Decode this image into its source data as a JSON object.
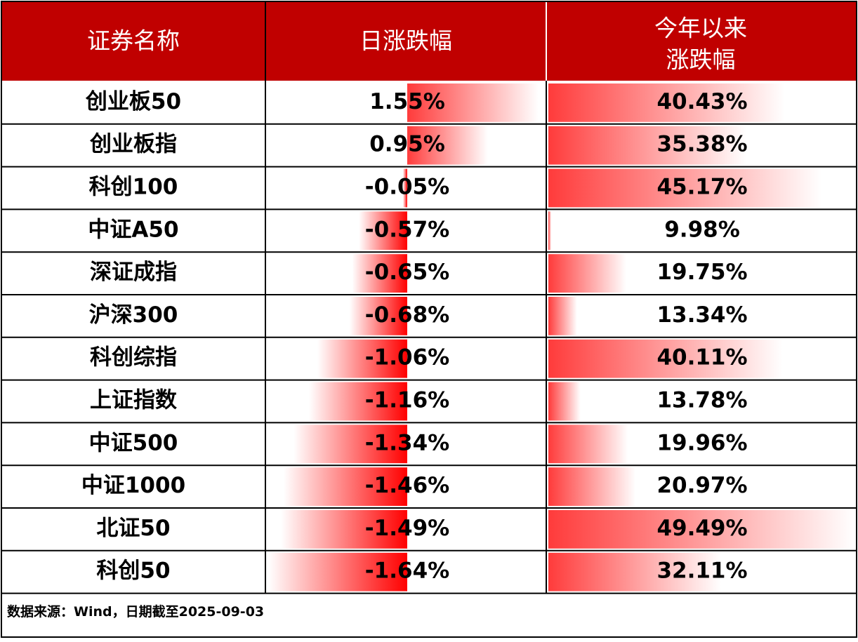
{
  "table": {
    "headers": [
      "证券名称",
      "日涨跌幅",
      [
        "今年以来",
        "涨跌幅"
      ]
    ],
    "names": [
      "创业板50",
      "创业板指",
      "科创100",
      "中证A50",
      "深证成指",
      "沪深300",
      "科创综指",
      "上证指数",
      "中证500",
      "中证1000",
      "北证50",
      "科创50"
    ],
    "daily": {
      "values": [
        1.55,
        0.95,
        -0.05,
        -0.57,
        -0.65,
        -0.68,
        -1.06,
        -1.16,
        -1.34,
        -1.46,
        -1.49,
        -1.64
      ],
      "value_labels": [
        "1.55%",
        "0.95%",
        "-0.05%",
        "-0.57%",
        "-0.65%",
        "-0.68%",
        "-1.06%",
        "-1.16%",
        "-1.34%",
        "-1.46%",
        "-1.49%",
        "-1.64%"
      ]
    },
    "ytd": {
      "values": [
        40.43,
        35.38,
        45.17,
        9.98,
        19.75,
        13.34,
        40.11,
        13.78,
        19.96,
        20.97,
        49.49,
        32.11
      ],
      "value_labels": [
        "40.43%",
        "35.38%",
        "45.17%",
        "9.98%",
        "19.75%",
        "13.34%",
        "40.11%",
        "13.78%",
        "19.96%",
        "20.97%",
        "49.49%",
        "32.11%"
      ]
    }
  },
  "footer": "数据来源：Wind，日期截至2025-09-03"
}
